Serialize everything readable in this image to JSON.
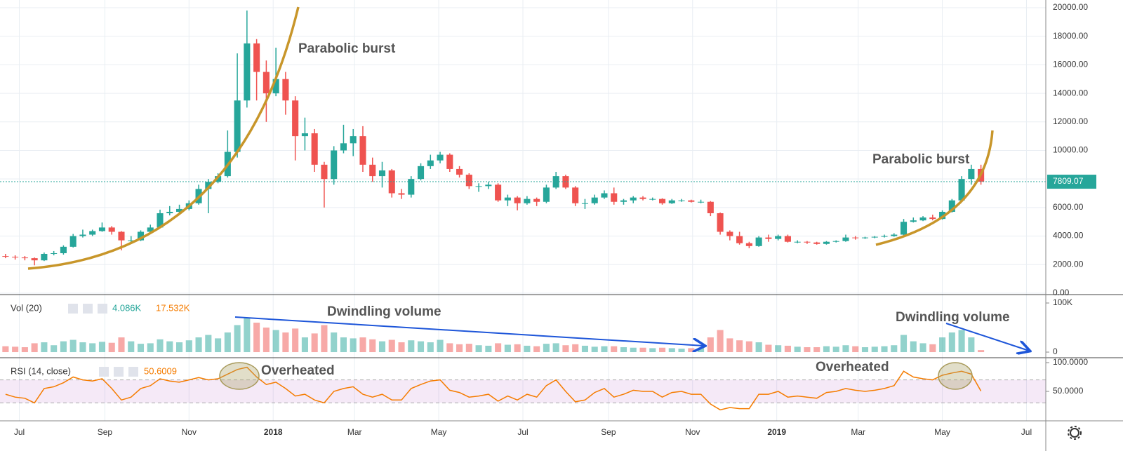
{
  "chart_data": [
    {
      "type": "candlestick",
      "x": [
        -10,
        -3,
        4,
        11,
        18,
        25,
        32,
        39,
        46,
        53,
        60,
        67,
        74,
        81,
        88,
        95,
        102,
        109,
        116,
        123,
        130,
        137,
        144,
        151,
        158,
        165,
        172,
        179,
        186,
        193,
        200,
        207,
        214,
        221,
        228,
        235,
        242,
        249,
        256,
        263,
        270,
        277,
        284,
        291,
        298,
        305,
        312,
        319,
        326,
        333,
        340,
        347,
        354,
        361,
        368,
        375,
        382,
        389,
        396,
        403,
        410,
        417,
        424,
        431,
        438,
        445,
        452,
        459,
        466,
        473,
        480,
        487,
        494,
        501,
        508,
        515,
        522,
        529,
        536,
        543,
        550,
        557,
        564,
        571,
        578,
        585,
        592,
        599,
        606,
        613,
        620,
        627,
        634,
        641,
        648,
        655,
        662,
        669,
        676,
        683,
        690,
        697
      ],
      "open": [
        2600,
        2550,
        2500,
        2450,
        2300,
        2750,
        2800,
        3250,
        4000,
        4100,
        4350,
        4600,
        4300,
        3700,
        3700,
        4300,
        4600,
        5600,
        5700,
        5900,
        6300,
        7300,
        7800,
        8200,
        9900,
        13500,
        17500,
        15500,
        14000,
        15000,
        13500,
        11000,
        11200,
        9000,
        8000,
        10000,
        10500,
        11000,
        9000,
        8200,
        8600,
        7000,
        6900,
        8000,
        8900,
        9300,
        9700,
        8700,
        8300,
        7500,
        7500,
        7600,
        6500,
        6700,
        6300,
        6600,
        6400,
        7400,
        8200,
        7400,
        6300,
        6300,
        6700,
        7000,
        6400,
        6500,
        6700,
        6600,
        6600,
        6300,
        6500,
        6500,
        6400,
        6400,
        5600,
        4300,
        4000,
        3500,
        3300,
        3900,
        3800,
        4000,
        3600,
        3600,
        3550,
        3450,
        3600,
        3650,
        3900,
        3850,
        3900,
        3950,
        4000,
        4100,
        5000,
        5100,
        5300,
        5200,
        5700,
        6500,
        8000,
        8700
      ],
      "high": [
        2750,
        2650,
        2600,
        2500,
        2850,
        2950,
        3350,
        4150,
        4450,
        4450,
        4950,
        4700,
        4350,
        4000,
        4400,
        4800,
        5850,
        6100,
        6200,
        6500,
        7600,
        8000,
        8400,
        11400,
        16800,
        19800,
        17800,
        16300,
        17200,
        15500,
        13800,
        12300,
        11500,
        9200,
        10300,
        11800,
        11500,
        11700,
        9500,
        9200,
        8700,
        7300,
        8200,
        9100,
        9700,
        9900,
        9800,
        8900,
        8400,
        7700,
        7800,
        7700,
        6900,
        6800,
        6800,
        6700,
        7600,
        8500,
        8300,
        7500,
        6600,
        6900,
        7200,
        7400,
        6600,
        6800,
        6800,
        6700,
        6650,
        6600,
        6600,
        6550,
        6550,
        6450,
        5650,
        4400,
        4300,
        3600,
        4000,
        4100,
        4100,
        4100,
        3700,
        3650,
        3600,
        3650,
        3700,
        4100,
        4000,
        3950,
        4000,
        4100,
        4200,
        5200,
        5300,
        5400,
        5500,
        5800,
        6600,
        8200,
        9000,
        9000
      ],
      "low": [
        2450,
        2350,
        2300,
        1950,
        2250,
        2650,
        2700,
        3200,
        3900,
        4000,
        4300,
        4100,
        3000,
        3500,
        3650,
        4200,
        4550,
        5450,
        5500,
        5800,
        6200,
        5600,
        7700,
        8100,
        9500,
        13000,
        13500,
        12000,
        13800,
        12500,
        9300,
        10000,
        8500,
        6000,
        7600,
        9800,
        9600,
        8500,
        7800,
        7400,
        6700,
        6600,
        6700,
        7900,
        8700,
        9100,
        8500,
        8100,
        7300,
        7100,
        7300,
        6400,
        6100,
        5800,
        6200,
        6100,
        6300,
        7300,
        7300,
        6100,
        5900,
        6200,
        6600,
        6200,
        6200,
        6300,
        6500,
        6500,
        6200,
        6250,
        6400,
        6350,
        6300,
        5400,
        4100,
        3700,
        3400,
        3150,
        3250,
        3600,
        3700,
        3550,
        3500,
        3450,
        3400,
        3400,
        3550,
        3600,
        3750,
        3800,
        3850,
        3900,
        3950,
        4050,
        4950,
        5050,
        5100,
        5150,
        5650,
        6400,
        7600,
        7600
      ],
      "close": [
        2550,
        2500,
        2450,
        2300,
        2750,
        2800,
        3250,
        4000,
        4100,
        4350,
        4600,
        4300,
        3700,
        3700,
        4300,
        4600,
        5600,
        5700,
        5900,
        6300,
        7300,
        7800,
        8200,
        9900,
        13500,
        17500,
        15500,
        14000,
        15000,
        13500,
        11000,
        11200,
        9000,
        8000,
        10000,
        10500,
        11000,
        9000,
        8200,
        8600,
        7000,
        6900,
        8000,
        8900,
        9300,
        9700,
        8700,
        8300,
        7500,
        7500,
        7600,
        6500,
        6700,
        6300,
        6600,
        6400,
        7400,
        8200,
        7400,
        6300,
        6300,
        6700,
        7000,
        6400,
        6500,
        6700,
        6600,
        6600,
        6300,
        6500,
        6500,
        6400,
        6400,
        5600,
        4300,
        4000,
        3500,
        3300,
        3900,
        3800,
        4000,
        3600,
        3600,
        3550,
        3450,
        3600,
        3650,
        3900,
        3850,
        3900,
        3950,
        4000,
        4100,
        5000,
        5100,
        5300,
        5200,
        5700,
        6500,
        8000,
        8700,
        7809.07
      ],
      "up_color": "#26a69a",
      "down_color": "#ef5350",
      "xlim": [
        -14,
        744
      ],
      "xticks": [
        {
          "value": 0,
          "label": "Jul"
        },
        {
          "value": 62,
          "label": "Sep"
        },
        {
          "value": 123,
          "label": "Nov"
        },
        {
          "value": 184,
          "label": "2018"
        },
        {
          "value": 243,
          "label": "Mar"
        },
        {
          "value": 304,
          "label": "May"
        },
        {
          "value": 365,
          "label": "Jul"
        },
        {
          "value": 427,
          "label": "Sep"
        },
        {
          "value": 488,
          "label": "Nov"
        },
        {
          "value": 549,
          "label": "2019"
        },
        {
          "value": 608,
          "label": "Mar"
        },
        {
          "value": 669,
          "label": "May"
        },
        {
          "value": 730,
          "label": "Jul"
        }
      ],
      "ylim": [
        -100,
        20540
      ],
      "yticks": [
        {
          "value": 0,
          "label": "0.00"
        },
        {
          "value": 2000,
          "label": "2000.00"
        },
        {
          "value": 4000,
          "label": "4000.00"
        },
        {
          "value": 6000,
          "label": "6000.00"
        },
        {
          "value": 8000,
          "label": "8000.00"
        },
        {
          "value": 10000,
          "label": "10000.00"
        },
        {
          "value": 12000,
          "label": "12000.00"
        },
        {
          "value": 14000,
          "label": "14000.00"
        },
        {
          "value": 16000,
          "label": "16000.00"
        },
        {
          "value": 18000,
          "label": "18000.00"
        },
        {
          "value": 20000,
          "label": "20000.00"
        }
      ],
      "grid": true,
      "annotations": [
        "Parabolic burst",
        "Parabolic burst"
      ]
    },
    {
      "type": "bar",
      "title": "Vol (20)",
      "legend_values": [
        "4.086K",
        "17.532K"
      ],
      "values": [
        12000,
        11000,
        10000,
        18000,
        20000,
        14000,
        22000,
        25000,
        20000,
        18000,
        21000,
        19000,
        30000,
        22000,
        17000,
        18000,
        26000,
        22000,
        20000,
        24000,
        30000,
        35000,
        28000,
        40000,
        55000,
        70000,
        60000,
        50000,
        45000,
        40000,
        48000,
        30000,
        38000,
        55000,
        40000,
        30000,
        28000,
        30000,
        26000,
        22000,
        25000,
        20000,
        24000,
        22000,
        20000,
        25000,
        18000,
        16000,
        17000,
        14000,
        13000,
        18000,
        15000,
        16000,
        13000,
        12000,
        17000,
        18000,
        14000,
        16000,
        13000,
        11000,
        12000,
        12000,
        10000,
        9000,
        9000,
        8000,
        9000,
        8000,
        7000,
        8000,
        9000,
        30000,
        45000,
        28000,
        24000,
        22000,
        20000,
        15000,
        14000,
        13000,
        11000,
        10000,
        10000,
        12000,
        11000,
        14000,
        12000,
        10000,
        11000,
        12000,
        14000,
        35000,
        22000,
        18000,
        16000,
        30000,
        40000,
        45000,
        30000,
        4086
      ],
      "ylim": [
        -11400,
        115700
      ],
      "yticks": [
        0,
        {
          "value": 100000,
          "label": "100K"
        }
      ],
      "annotations": [
        "Dwindling volume",
        "Dwindling volume"
      ]
    },
    {
      "type": "line",
      "title": "RSI (14, close)",
      "color": "#f57c00",
      "values": [
        45,
        40,
        38,
        30,
        55,
        58,
        65,
        75,
        70,
        68,
        72,
        55,
        35,
        40,
        55,
        60,
        72,
        68,
        66,
        70,
        74,
        70,
        72,
        80,
        88,
        92,
        75,
        62,
        66,
        55,
        42,
        45,
        35,
        30,
        50,
        55,
        58,
        45,
        40,
        45,
        35,
        35,
        55,
        62,
        68,
        70,
        52,
        48,
        40,
        42,
        45,
        33,
        42,
        35,
        45,
        40,
        60,
        70,
        50,
        32,
        35,
        48,
        55,
        40,
        45,
        52,
        50,
        50,
        40,
        48,
        50,
        45,
        45,
        28,
        18,
        22,
        20,
        20,
        45,
        45,
        50,
        40,
        42,
        40,
        38,
        48,
        50,
        55,
        52,
        50,
        52,
        55,
        60,
        85,
        75,
        72,
        70,
        78,
        82,
        85,
        80,
        50.6009
      ],
      "ylim": [
        -1.2,
        107.3
      ],
      "yticks": [
        {
          "value": 50,
          "label": "50.0000"
        },
        {
          "value": 100,
          "label": "100.0000"
        }
      ],
      "band": [
        30,
        70
      ],
      "band_color": "#9c27b0",
      "annotations": [
        "Overheated",
        "Overheated"
      ]
    }
  ]
}
